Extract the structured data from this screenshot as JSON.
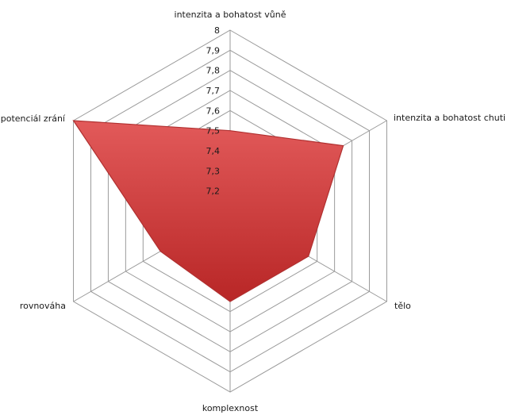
{
  "chart_data": {
    "type": "radar",
    "title": "",
    "categories": [
      "intenzita a bohatost vůně",
      "intenzita a bohatost chuti",
      "tělo",
      "komplexnost",
      "rovnováha",
      "potenciál zrání"
    ],
    "series": [
      {
        "values": [
          7.5,
          7.75,
          7.55,
          7.55,
          7.5,
          8.0
        ]
      }
    ],
    "rlim": [
      7.1,
      8.0
    ],
    "ticks": [
      "7,2",
      "7,3",
      "7,4",
      "7,5",
      "7,6",
      "7,7",
      "7,8",
      "7,9",
      "8"
    ],
    "tick_values": [
      7.2,
      7.3,
      7.4,
      7.5,
      7.6,
      7.7,
      7.8,
      7.9,
      8.0
    ],
    "grid": true,
    "legend": "none",
    "colors": {
      "fill_light": "#e06060",
      "fill_dark": "#b82424",
      "stroke": "#b03030",
      "grid": "#9a9a9a"
    }
  }
}
